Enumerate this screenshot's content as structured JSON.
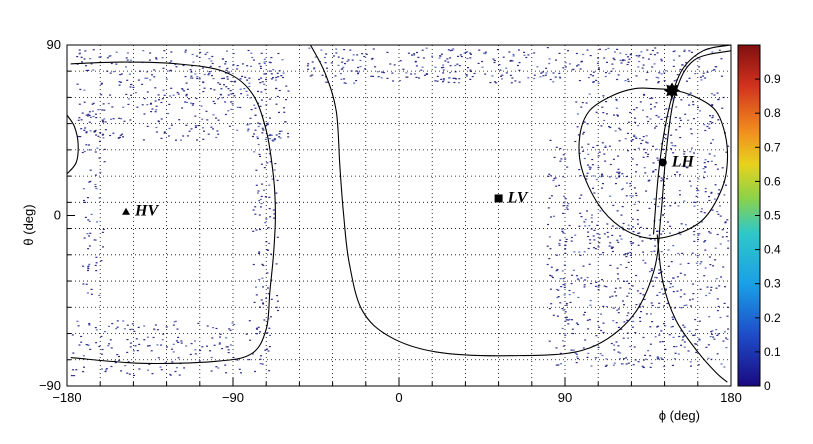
{
  "chart_data": {
    "type": "heatmap",
    "xlabel": "ϕ (deg)",
    "ylabel": "θ (deg)",
    "xlim": [
      -180,
      180
    ],
    "ylim": [
      -90,
      90
    ],
    "x_ticks": [
      -180,
      -90,
      0,
      90,
      180
    ],
    "x_tick_labels": [
      "−180",
      "−90",
      "0",
      "90",
      "180"
    ],
    "y_ticks": [
      -90,
      0,
      90
    ],
    "y_tick_labels": [
      "−90",
      "0",
      "90"
    ],
    "grid": true,
    "colorbar": {
      "min": 0,
      "max": 1,
      "ticks": [
        0,
        0.1,
        0.2,
        0.3,
        0.4,
        0.5,
        0.6,
        0.7,
        0.8,
        0.9
      ],
      "tick_labels": [
        "0",
        "0.1",
        "0.2",
        "0.3",
        "0.4",
        "0.5",
        "0.6",
        "0.7",
        "0.8",
        "0.9"
      ]
    },
    "markers": [
      {
        "label": "HV",
        "shape": "triangle",
        "x": -148,
        "y": 2
      },
      {
        "label": "LV",
        "shape": "square",
        "x": 54,
        "y": 9
      },
      {
        "label": "LH",
        "shape": "circle",
        "x": 143,
        "y": 28
      },
      {
        "label": "",
        "shape": "star",
        "x": 148,
        "y": 66
      }
    ],
    "curves": [
      {
        "name": "left-loop",
        "points": [
          [
            -178,
            80
          ],
          [
            -150,
            81
          ],
          [
            -120,
            80
          ],
          [
            -95,
            76
          ],
          [
            -80,
            65
          ],
          [
            -72,
            45
          ],
          [
            -68,
            20
          ],
          [
            -67,
            0
          ],
          [
            -68,
            -20
          ],
          [
            -70,
            -40
          ],
          [
            -72,
            -60
          ],
          [
            -80,
            -73
          ],
          [
            -100,
            -77
          ],
          [
            -140,
            -78
          ],
          [
            -178,
            -75
          ]
        ]
      },
      {
        "name": "left-edge-arc",
        "points": [
          [
            -180,
            53
          ],
          [
            -176,
            47
          ],
          [
            -174,
            38
          ],
          [
            -175,
            28
          ],
          [
            -180,
            22
          ]
        ]
      },
      {
        "name": "s-curve",
        "points": [
          [
            -48,
            90
          ],
          [
            -40,
            75
          ],
          [
            -34,
            55
          ],
          [
            -32,
            25
          ],
          [
            -30,
            0
          ],
          [
            -27,
            -25
          ],
          [
            -20,
            -50
          ],
          [
            -5,
            -64
          ],
          [
            20,
            -72
          ],
          [
            60,
            -74
          ],
          [
            100,
            -71
          ],
          [
            125,
            -55
          ],
          [
            138,
            -30
          ],
          [
            142,
            0
          ],
          [
            145,
            35
          ],
          [
            150,
            65
          ],
          [
            160,
            82
          ],
          [
            180,
            87
          ]
        ]
      },
      {
        "name": "lower-right-curve",
        "points": [
          [
            140,
            -10
          ],
          [
            143,
            -35
          ],
          [
            150,
            -55
          ],
          [
            162,
            -72
          ],
          [
            172,
            -83
          ],
          [
            178,
            -88
          ]
        ]
      },
      {
        "name": "upper-right-curve",
        "points": [
          [
            138,
            -10
          ],
          [
            141,
            25
          ],
          [
            146,
            55
          ],
          [
            153,
            76
          ],
          [
            165,
            87
          ],
          [
            180,
            90
          ]
        ]
      },
      {
        "name": "right-circle",
        "points": [
          [
            138,
            67
          ],
          [
            150,
            66
          ],
          [
            162,
            62
          ],
          [
            172,
            55
          ],
          [
            177,
            42
          ],
          [
            178,
            28
          ],
          [
            175,
            14
          ],
          [
            165,
            -2
          ],
          [
            150,
            -10
          ],
          [
            135,
            -12
          ],
          [
            120,
            -6
          ],
          [
            108,
            6
          ],
          [
            99,
            25
          ],
          [
            98,
            42
          ],
          [
            103,
            55
          ],
          [
            115,
            63
          ],
          [
            128,
            67
          ],
          [
            138,
            67
          ]
        ]
      }
    ]
  }
}
